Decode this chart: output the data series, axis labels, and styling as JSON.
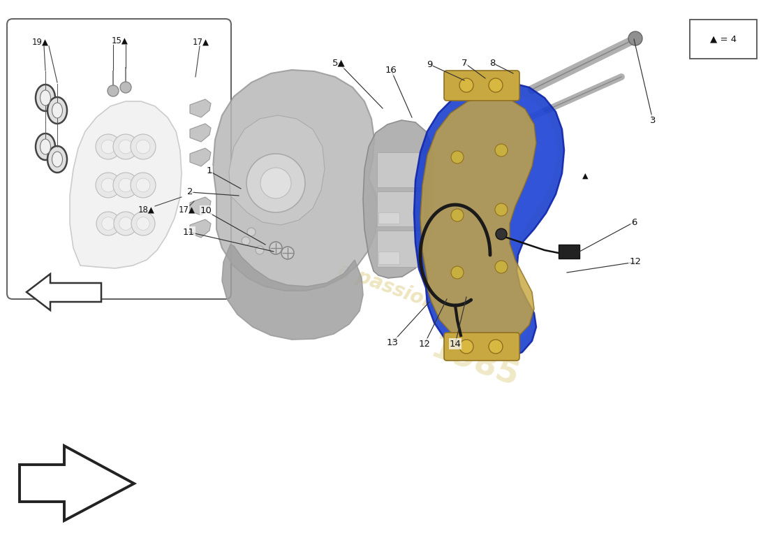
{
  "bg_color": "#ffffff",
  "caliper_blue": "#1a3fcc",
  "caliper_blue_light": "#3358e8",
  "bracket_gold": "#c8a840",
  "bracket_gold_dark": "#907020",
  "disc_gray": "#9a9a9a",
  "shield_gray": "#b8b8b8",
  "shield_gray_dark": "#a0a0a0",
  "pad_gray": "#aaaaaa",
  "pad_gray_light": "#cccccc",
  "cable_black": "#1a1a1a",
  "bolt_gray": "#aaaaaa",
  "line_color": "#333333",
  "text_color": "#111111",
  "watermark_yellow": "#d4c060",
  "watermark_alpha": 0.4,
  "legend_text": "▲ = 4"
}
